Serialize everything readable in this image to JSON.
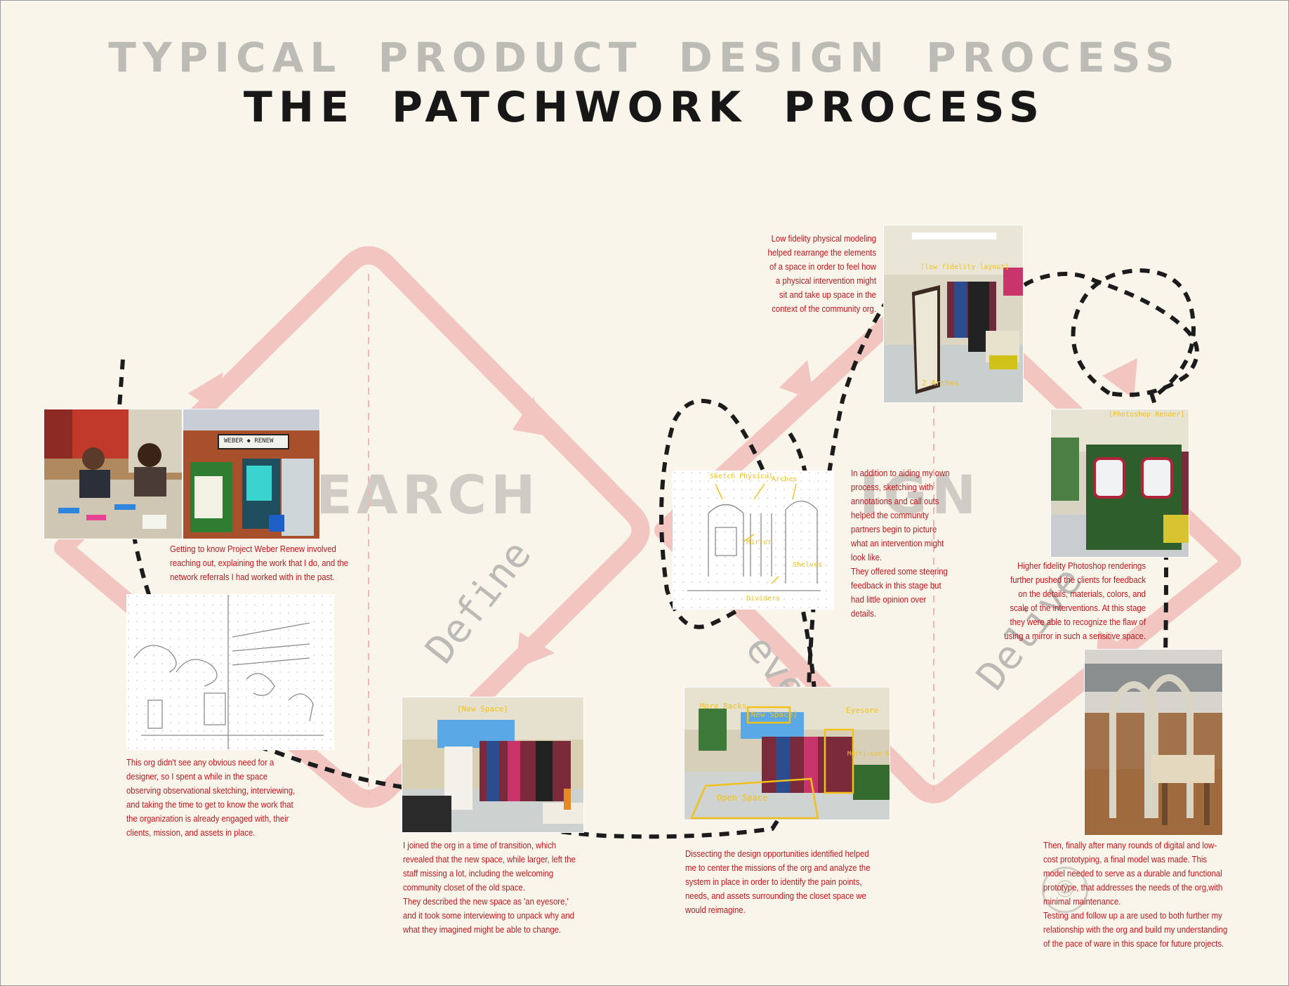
{
  "titles": {
    "typical": "TYPICAL PRODUCT DESIGN PROCESS",
    "patchwork": "THE PATCHWORK PROCESS"
  },
  "big_words": {
    "research": "EARCH",
    "design": "IGN"
  },
  "phases": {
    "define_1": "Define",
    "develop": "evelop",
    "deliver": "Delive"
  },
  "photo_notes": {
    "sign": "WEBER ◆ RENEW",
    "new_space_a": "[New Space]",
    "new_space_b": "[New Space]",
    "more_racks": "More Racks",
    "eyesore": "Eyesore",
    "open_space": "Open Space",
    "multi_use": "Multi-use Space",
    "low_fidelity": "[low fidelity layout]",
    "arches": "2 Arches",
    "photoshop_render": "[Photoshop Render]",
    "sketch_physical": "Sketch Physical",
    "sketch_arches": "Arches",
    "sketch_mirror": "Mirror",
    "sketch_dividers": "Dividers",
    "sketch_shelves": "Shelves"
  },
  "captions": {
    "getting_to_know": "Getting to know Project Weber Renew involved reaching out, explaining the work that I do, and the network referrals I had worked with in the past.",
    "no_obvious_need": "This org didn't see any  obvious need for a designer, so I spent a while in the space observing observational  sketching, interviewing, and taking the time to get to know the work that the organization is already engaged with, their clients, mission, and assets in place.",
    "transition": "I joined the org in a time of transition, which revealed that the new space, while larger, left the staff missing a lot, including the welcoming community closet of the old space.\nThey described the new space as 'an eyesore,' and it took some interviewing to unpack why and what they imagined might be able to change.",
    "dissecting": "Dissecting the design opportunities identified helped me to center the missions of the org and analyze the system in place in order to identify the pain points, needs, and assets surrounding the closet space we would reimagine.",
    "sketching": "In addition to aiding my own process, sketching with annotations and call outs helped the community partners begin to picture what an intervention might look like.\nThey offered some steering feedback in this stage but had little opinion over details.",
    "low_fidelity": "Low fidelity physical modeling helped rearrange the elements of a space in order to feel how a physical intervention might sit and take up space in the context of the community org.",
    "higher_fidelity": "Higher fidelity Photoshop renderings further pushed the clients for feedback on the details, materials, colors, and scale of the interventions. At this stage they were able to recognize the flaw of using a mirror in such a sensitive space.",
    "final_model": "Then, finally after many rounds of digital and low-cost prototyping, a final model was made. This model needed to serve as a durable and functional prototype, that addresses the needs of the org,with minimal maintenance.\nTesting and follow up a are used to both further my relationship with the org and build my understanding of the pace of ware in this space for future projects."
  },
  "colors": {
    "background": "#f9f5ea",
    "arrow": "#f3c5c1",
    "caption": "#c0141c",
    "dashed": "#1c1c1c",
    "annotation": "#f2c21b"
  }
}
